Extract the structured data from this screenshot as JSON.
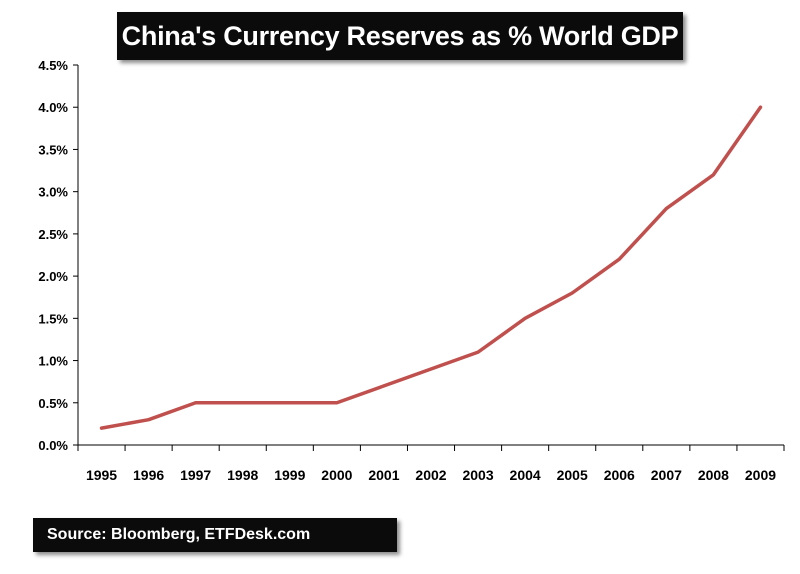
{
  "chart_data": {
    "type": "line",
    "title": "China's Currency Reserves as % World GDP",
    "source": "Source: Bloomberg, ETFDesk.com",
    "categories": [
      "1995",
      "1996",
      "1997",
      "1998",
      "1999",
      "2000",
      "2001",
      "2002",
      "2003",
      "2004",
      "2005",
      "2006",
      "2007",
      "2008",
      "2009"
    ],
    "series": [
      {
        "values": [
          0.2,
          0.3,
          0.5,
          0.5,
          0.5,
          0.5,
          0.7,
          0.9,
          1.1,
          1.5,
          1.8,
          2.2,
          2.8,
          3.2,
          4.0
        ]
      }
    ],
    "y_ticks": [
      "0.0%",
      "0.5%",
      "1.0%",
      "1.5%",
      "2.0%",
      "2.5%",
      "3.0%",
      "3.5%",
      "4.0%",
      "4.5%"
    ],
    "ylim": [
      0,
      4.5
    ],
    "xlabel": "",
    "ylabel": "",
    "grid": false,
    "colors": {
      "line": "#c0504d",
      "box": "#0b0b0b"
    }
  }
}
